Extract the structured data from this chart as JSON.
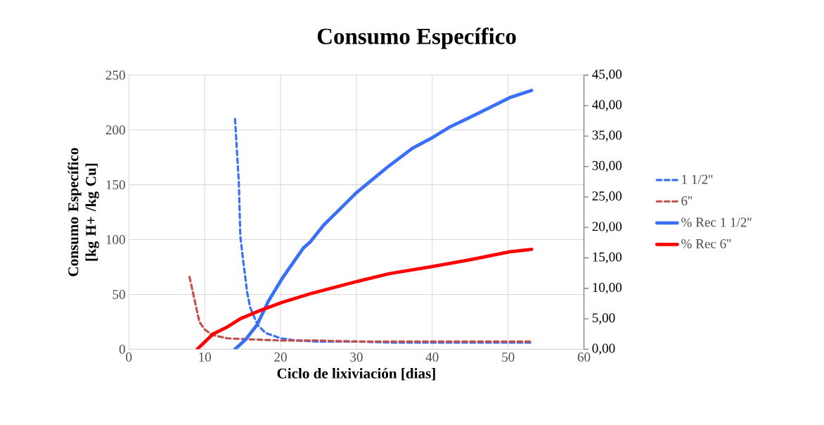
{
  "chart_data": {
    "type": "line",
    "title": "Consumo Específico",
    "xlabel": "Ciclo de lixiviación [dias]",
    "ylabel": "Consumo Específico [kg H+ /kg Cu]",
    "xlim": [
      0,
      60
    ],
    "xticks": [
      0,
      10,
      20,
      30,
      40,
      50,
      60
    ],
    "ylim": [
      0,
      250
    ],
    "yticks": [
      0,
      50,
      100,
      150,
      200,
      250
    ],
    "y2lim": [
      0,
      45
    ],
    "y2ticks": [
      {
        "value": 0,
        "label": "0,00"
      },
      {
        "value": 5,
        "label": "5,00"
      },
      {
        "value": 10,
        "label": "10,00"
      },
      {
        "value": 15,
        "label": "15,00"
      },
      {
        "value": 20,
        "label": "20,00"
      },
      {
        "value": 25,
        "label": "25,00"
      },
      {
        "value": 30,
        "label": "30,00"
      },
      {
        "value": 35,
        "label": "35,00"
      },
      {
        "value": 40,
        "label": "40,00"
      },
      {
        "value": 45,
        "label": "45,00"
      }
    ],
    "grid": true,
    "legend": "right",
    "series": [
      {
        "name": "1 1/2''",
        "color": "#3a6ff7",
        "line_style": "dashed",
        "x": [
          14,
          14.5,
          14.7,
          15,
          15.6,
          16,
          17,
          18,
          20,
          22,
          25,
          30,
          35,
          40,
          45,
          50,
          53
        ],
        "values": [
          210,
          152,
          103,
          85,
          52,
          38,
          22,
          15,
          10,
          8,
          7,
          7,
          6,
          6,
          6,
          6,
          6
        ]
      },
      {
        "name": "6''",
        "color": "#c0504d",
        "line_style": "dashed",
        "x": [
          8,
          8.7,
          9.3,
          10,
          11,
          13,
          16,
          20,
          25,
          30,
          40,
          53
        ],
        "values": [
          66,
          44,
          25,
          18,
          13,
          10,
          9,
          8,
          8,
          7,
          7,
          7
        ]
      },
      {
        "name": "% Rec 1 1/2''",
        "color": "#3a6ff7",
        "line_style": "solid",
        "axis": "y2",
        "x": [
          14,
          15.4,
          16.9,
          18.4,
          20.2,
          23,
          23.9,
          25.7,
          27.9,
          30,
          34.3,
          37.4,
          40.1,
          42.2,
          45,
          48.1,
          50.2,
          53.1
        ],
        "values": [
          0,
          1.6,
          4.0,
          7.9,
          11.6,
          16.6,
          17.6,
          20.4,
          23.1,
          25.7,
          30.1,
          33.0,
          34.8,
          36.4,
          38.1,
          40.0,
          41.3,
          42.5
        ]
      },
      {
        "name": "% Rec 6''",
        "color": "#ff0000",
        "line_style": "solid",
        "axis": "y2",
        "x": [
          9,
          11.1,
          12.9,
          14.7,
          17.2,
          20.2,
          23.9,
          30,
          34.3,
          40.1,
          45,
          50.2,
          53.1
        ],
        "values": [
          0,
          2.5,
          3.6,
          5.0,
          6.3,
          7.7,
          9.1,
          11.1,
          12.4,
          13.6,
          14.7,
          16.0,
          16.4
        ]
      }
    ]
  }
}
